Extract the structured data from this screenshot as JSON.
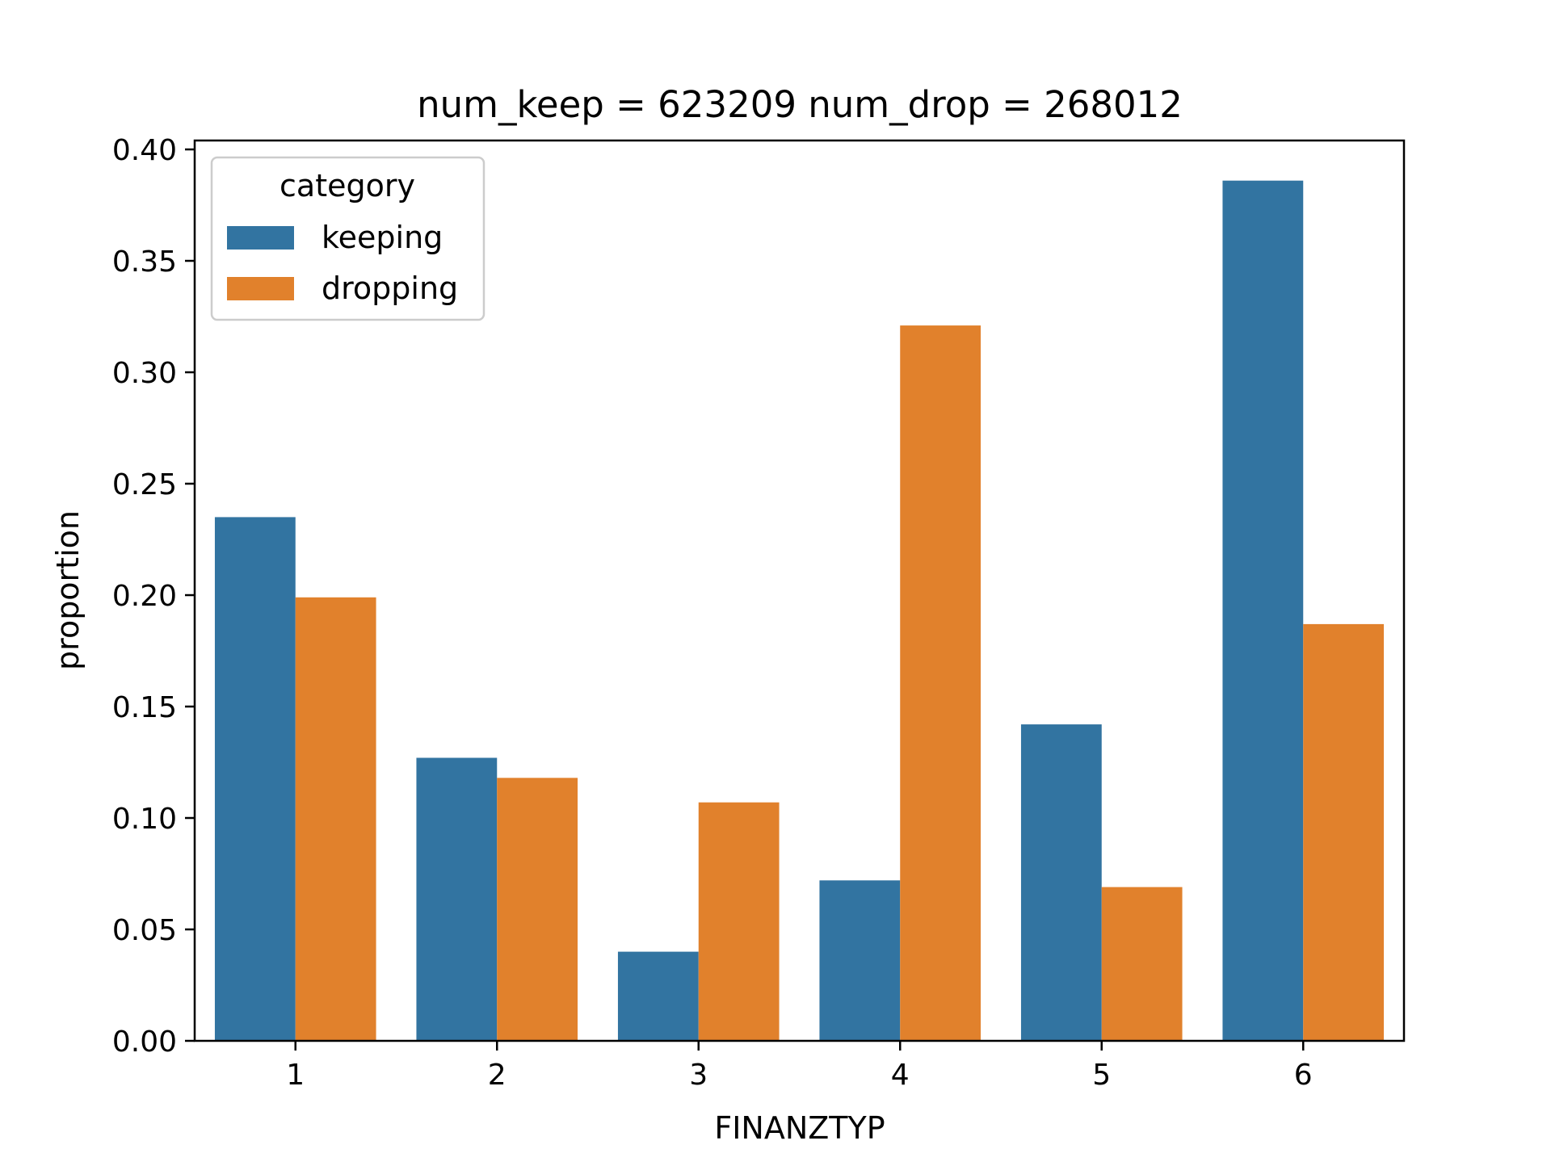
{
  "chart_data": {
    "type": "bar",
    "title": "num_keep = 623209  num_drop = 268012",
    "xlabel": "FINANZTYP",
    "ylabel": "proportion",
    "categories": [
      "1",
      "2",
      "3",
      "4",
      "5",
      "6"
    ],
    "series": [
      {
        "name": "keeping",
        "color": "#3274a1",
        "values": [
          0.235,
          0.127,
          0.04,
          0.072,
          0.142,
          0.386
        ]
      },
      {
        "name": "dropping",
        "color": "#e1812c",
        "values": [
          0.199,
          0.118,
          0.107,
          0.321,
          0.069,
          0.187
        ]
      }
    ],
    "ylim": [
      0,
      0.404
    ],
    "yticks": [
      "0.00",
      "0.05",
      "0.10",
      "0.15",
      "0.20",
      "0.25",
      "0.30",
      "0.35",
      "0.40"
    ],
    "legend": {
      "title": "category",
      "placement": "upper-left"
    },
    "grid": false
  }
}
